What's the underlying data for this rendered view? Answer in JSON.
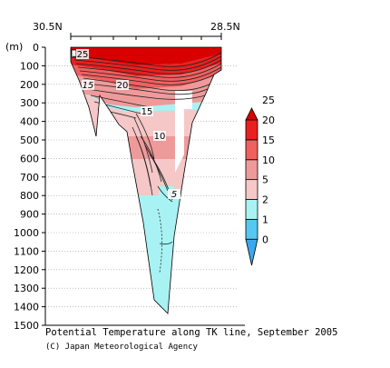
{
  "chart_data": {
    "type": "contour",
    "title": "Potential Temperature along TK line, September 2005",
    "ylabel": "(m)",
    "x_labels": [
      "30.5N",
      "28.5N"
    ],
    "ylim": [
      0,
      1500
    ],
    "y_ticks": [
      0,
      100,
      200,
      300,
      400,
      500,
      600,
      700,
      800,
      900,
      1000,
      1100,
      1200,
      1300,
      1400,
      1500
    ],
    "contour_labels": [
      {
        "value": "25",
        "depth": 60
      },
      {
        "value": "15",
        "depth": 185
      },
      {
        "value": "20",
        "depth": 180
      },
      {
        "value": "15",
        "depth": 360
      },
      {
        "value": "10",
        "depth": 480
      },
      {
        "value": "5",
        "depth": 800
      }
    ],
    "colorbar": {
      "levels": [
        0,
        1,
        2,
        5,
        10,
        15,
        20,
        25
      ],
      "colors": [
        "#3aa8ee",
        "#54c8f0",
        "#a8f2f4",
        "#f5c7c7",
        "#ef9a9a",
        "#f06060",
        "#e82020",
        "#d80000"
      ]
    }
  },
  "credit": "(C) Japan Meteorological Agency"
}
